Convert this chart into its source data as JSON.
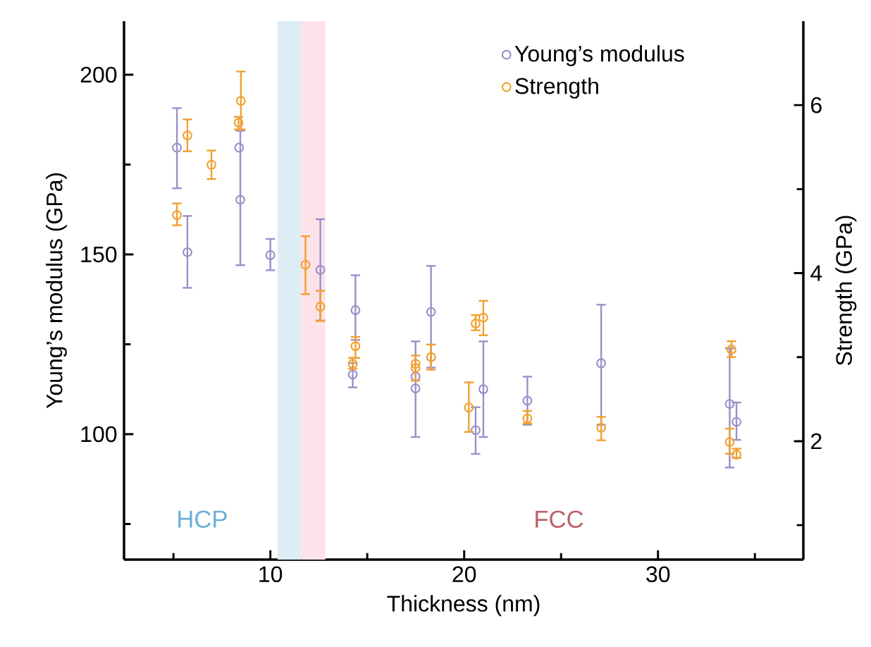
{
  "chart_data": {
    "type": "scatter",
    "xlabel": "Thickness (nm)",
    "ylabel": "Young’s modulus (GPa)",
    "y2label": "Strength (GPa)",
    "xlim": [
      2.45,
      37.5
    ],
    "xticks": [
      {
        "value": 5,
        "label": null
      },
      10,
      {
        "value": 15,
        "label": null
      },
      20,
      {
        "value": 25,
        "label": null
      },
      30,
      {
        "value": 35,
        "label": null
      }
    ],
    "ylim": [
      65.1,
      214.9
    ],
    "yticks": [
      {
        "value": 75,
        "label": null
      },
      100,
      {
        "value": 125,
        "label": null
      },
      150,
      {
        "value": 175,
        "label": null
      },
      200
    ],
    "y2lim": [
      0.59,
      7.0
    ],
    "y2ticks": [
      {
        "value": 1,
        "label": null
      },
      2,
      {
        "value": 3,
        "label": null
      },
      4,
      {
        "value": 5,
        "label": null
      },
      6
    ],
    "marker": "circle",
    "legend": "top right",
    "grid": false,
    "bands": [
      {
        "axis": "x",
        "from": 10.37,
        "to": 11.6,
        "color": "#dcedf4"
      },
      {
        "axis": "x",
        "from": 11.6,
        "to": 12.84,
        "color": "#fde3e9"
      }
    ],
    "annotations": [
      "HCP",
      "FCC"
    ],
    "series": [
      {
        "name": "Young’s modulus",
        "color": "#9b8fc9",
        "x": [
          5.18,
          5.72,
          8.39,
          8.45,
          10.0,
          12.58,
          14.39,
          14.25,
          17.49,
          17.49,
          18.29,
          20.59,
          20.99,
          23.26,
          27.07,
          33.7,
          34.05
        ],
        "values": [
          179.7,
          150.6,
          179.7,
          165.2,
          149.8,
          145.7,
          134.5,
          116.6,
          116.0,
          112.7,
          134.0,
          101.1,
          112.5,
          109.3,
          119.7,
          108.4,
          103.4
        ],
        "errors": [
          [
            168.4,
            190.7
          ],
          [
            140.7,
            160.7
          ],
          null,
          [
            147.0,
            184.4
          ],
          [
            145.6,
            154.3
          ],
          [
            131.6,
            159.8
          ],
          [
            126.2,
            144.2
          ],
          [
            113.0,
            119.8
          ],
          null,
          [
            99.2,
            125.8
          ],
          [
            118.5,
            146.8
          ],
          [
            94.5,
            107.5
          ],
          [
            99.2,
            125.8
          ],
          [
            102.6,
            116.0
          ],
          [
            102.6,
            136.0
          ],
          [
            90.7,
            123.9
          ],
          [
            98.4,
            108.8
          ]
        ]
      },
      {
        "name": "Strength",
        "color": "#f0a030",
        "axis": "y2",
        "x": [
          5.18,
          5.72,
          6.96,
          8.36,
          8.48,
          11.81,
          12.58,
          14.39,
          14.25,
          17.49,
          17.49,
          18.29,
          20.24,
          20.59,
          20.99,
          23.26,
          27.07,
          33.79,
          33.7,
          34.05
        ],
        "values": [
          4.69,
          5.64,
          5.29,
          5.79,
          6.05,
          4.1,
          3.6,
          3.13,
          2.92,
          2.92,
          2.87,
          3.0,
          2.4,
          3.4,
          3.47,
          2.27,
          2.16,
          3.09,
          1.99,
          1.84
        ],
        "errors": [
          [
            4.57,
            4.83
          ],
          [
            5.45,
            5.83
          ],
          [
            5.12,
            5.46
          ],
          [
            5.71,
            5.86
          ],
          [
            5.71,
            6.4
          ],
          [
            3.75,
            4.44
          ],
          [
            3.43,
            3.79
          ],
          [
            2.99,
            3.24
          ],
          [
            2.86,
            2.99
          ],
          [
            2.72,
            3.02
          ],
          null,
          [
            2.85,
            3.15
          ],
          [
            2.11,
            2.7
          ],
          [
            3.32,
            3.5
          ],
          [
            3.26,
            3.67
          ],
          [
            2.21,
            2.36
          ],
          [
            2.01,
            2.29
          ],
          [
            3.0,
            3.19
          ],
          [
            1.85,
            2.15
          ],
          [
            1.8,
            1.91
          ]
        ]
      }
    ]
  }
}
